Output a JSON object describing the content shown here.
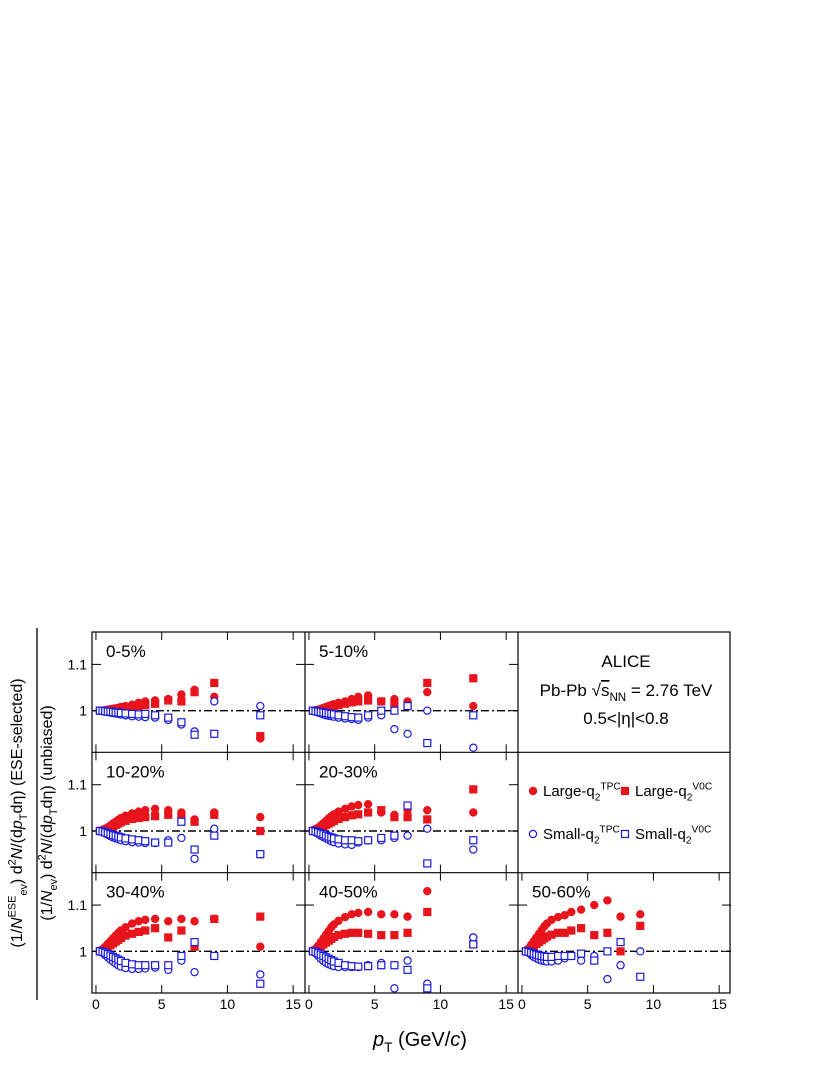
{
  "y_label": {
    "top": [
      {
        "t": "(1/"
      },
      {
        "t": "N",
        "s": "i"
      },
      {
        "t": "ESE",
        "s": "sup"
      },
      {
        "t": "ev",
        "s": "sub"
      },
      {
        "t": ") d"
      },
      {
        "t": "2",
        "s": "sup"
      },
      {
        "t": "N",
        "s": "i"
      },
      {
        "t": "/(d"
      },
      {
        "t": "p",
        "s": "i"
      },
      {
        "t": "T",
        "s": "sub"
      },
      {
        "t": "dη) (ESE-selected)"
      }
    ],
    "bottom": [
      {
        "t": "(1/"
      },
      {
        "t": "N",
        "s": "i"
      },
      {
        "t": "ev",
        "s": "sub"
      },
      {
        "t": ") d"
      },
      {
        "t": "2",
        "s": "sup"
      },
      {
        "t": "N",
        "s": "i"
      },
      {
        "t": "/(d"
      },
      {
        "t": "p",
        "s": "i"
      },
      {
        "t": "T",
        "s": "sub"
      },
      {
        "t": "dη)   (unbiased)"
      }
    ]
  },
  "x_label": [
    {
      "t": "p",
      "s": "i"
    },
    {
      "t": "T",
      "s": "sub"
    },
    {
      "t": " (GeV/"
    },
    {
      "t": "c",
      "s": "i"
    },
    {
      "t": ")"
    }
  ],
  "info": {
    "experiment": "ALICE",
    "system": [
      {
        "t": "Pb-Pb √"
      },
      {
        "t": "s",
        "s": "o"
      },
      {
        "t": "NN",
        "s": "sub"
      },
      {
        "t": " = 2.76 TeV"
      }
    ],
    "eta": "0.5<|η|<0.8"
  },
  "legend": [
    {
      "name": [
        {
          "t": "Large-q"
        },
        {
          "t": "2",
          "s": "sub"
        },
        {
          "t": "TPC",
          "s": "sup"
        }
      ],
      "color": "#e8141c",
      "marker": "circle",
      "filled": true
    },
    {
      "name": [
        {
          "t": "Large-q"
        },
        {
          "t": "2",
          "s": "sub"
        },
        {
          "t": "V0C",
          "s": "sup"
        }
      ],
      "color": "#e8141c",
      "marker": "square",
      "filled": true
    },
    {
      "name": [
        {
          "t": "Small-q"
        },
        {
          "t": "2",
          "s": "sub"
        },
        {
          "t": "TPC",
          "s": "sup"
        }
      ],
      "color": "#1a1adc",
      "marker": "circle",
      "filled": false
    },
    {
      "name": [
        {
          "t": "Small-q"
        },
        {
          "t": "2",
          "s": "sub"
        },
        {
          "t": "V0C",
          "s": "sup"
        }
      ],
      "color": "#1a1adc",
      "marker": "square",
      "filled": false
    }
  ],
  "axes": {
    "xlim": [
      -0.3,
      15.9
    ],
    "xticks": [
      0,
      5,
      10,
      15
    ],
    "ylim": [
      0.91,
      1.17
    ],
    "yticks": [
      1,
      1.1
    ],
    "reference_line": 1
  },
  "chart_data": [
    {
      "type": "scatter",
      "title": "0-5%",
      "x": [
        0.3,
        0.5,
        0.7,
        0.9,
        1.1,
        1.3,
        1.5,
        1.7,
        1.9,
        2.25,
        2.75,
        3.25,
        3.75,
        4.5,
        5.5,
        6.5,
        7.5,
        9,
        12.5
      ],
      "series": [
        {
          "values": [
            1.0,
            1.0,
            1.001,
            1.002,
            1.003,
            1.004,
            1.005,
            1.006,
            1.008,
            1.01,
            1.013,
            1.017,
            1.02,
            1.022,
            1.025,
            1.035,
            1.045,
            1.03,
            0.94
          ]
        },
        {
          "values": [
            1.0,
            1.0,
            1.0,
            1.001,
            1.002,
            1.003,
            1.003,
            1.004,
            1.005,
            1.006,
            1.008,
            1.01,
            1.012,
            1.015,
            1.022,
            1.02,
            1.04,
            1.06,
            0.945
          ]
        },
        {
          "values": [
            1.0,
            0.999,
            0.998,
            0.997,
            0.996,
            0.995,
            0.994,
            0.993,
            0.992,
            0.99,
            0.988,
            0.987,
            0.986,
            0.985,
            0.98,
            0.97,
            0.955,
            1.02,
            1.01
          ]
        },
        {
          "values": [
            1.0,
            1.0,
            0.999,
            0.998,
            0.998,
            0.997,
            0.996,
            0.996,
            0.995,
            0.994,
            0.993,
            0.992,
            0.993,
            0.99,
            0.985,
            0.975,
            0.948,
            0.95,
            0.99
          ]
        }
      ]
    },
    {
      "type": "scatter",
      "title": "5-10%",
      "x": [
        0.3,
        0.5,
        0.7,
        0.9,
        1.1,
        1.3,
        1.5,
        1.7,
        1.9,
        2.25,
        2.75,
        3.25,
        3.75,
        4.5,
        5.5,
        6.5,
        7.5,
        9,
        12.5
      ],
      "series": [
        {
          "values": [
            1.0,
            1.0,
            1.002,
            1.004,
            1.006,
            1.008,
            1.01,
            1.012,
            1.014,
            1.017,
            1.02,
            1.025,
            1.03,
            1.033,
            1.02,
            1.025,
            1.02,
            1.04,
            1.01
          ]
        },
        {
          "values": [
            1.0,
            1.0,
            1.001,
            1.002,
            1.003,
            1.005,
            1.006,
            1.008,
            1.01,
            1.012,
            1.015,
            1.018,
            1.02,
            1.022,
            1.02,
            1.015,
            1.01,
            1.06,
            1.07
          ]
        },
        {
          "values": [
            1.0,
            0.998,
            0.996,
            0.994,
            0.992,
            0.99,
            0.989,
            0.988,
            0.987,
            0.985,
            0.983,
            0.982,
            0.98,
            0.985,
            0.99,
            0.96,
            0.95,
            1.0,
            0.92
          ]
        },
        {
          "values": [
            1.0,
            0.999,
            0.998,
            0.997,
            0.996,
            0.995,
            0.994,
            0.993,
            0.992,
            0.99,
            0.988,
            0.986,
            0.985,
            0.99,
            1.0,
            1.0,
            1.01,
            0.93,
            0.99
          ]
        }
      ]
    },
    {
      "type": "scatter",
      "title": "10-20%",
      "x": [
        0.3,
        0.5,
        0.7,
        0.9,
        1.1,
        1.3,
        1.5,
        1.7,
        1.9,
        2.25,
        2.75,
        3.25,
        3.75,
        4.5,
        5.5,
        6.5,
        7.5,
        9,
        12.5
      ],
      "series": [
        {
          "values": [
            1.0,
            1.002,
            1.005,
            1.008,
            1.012,
            1.016,
            1.02,
            1.024,
            1.028,
            1.033,
            1.038,
            1.042,
            1.045,
            1.048,
            1.045,
            1.04,
            1.025,
            1.04,
            1.03
          ]
        },
        {
          "values": [
            1.0,
            1.001,
            1.003,
            1.005,
            1.007,
            1.01,
            1.013,
            1.016,
            1.019,
            1.022,
            1.026,
            1.028,
            1.03,
            1.032,
            1.035,
            1.03,
            1.02,
            1.035,
            1.0
          ]
        },
        {
          "values": [
            1.0,
            0.998,
            0.995,
            0.992,
            0.989,
            0.986,
            0.984,
            0.982,
            0.98,
            0.978,
            0.976,
            0.975,
            0.974,
            0.974,
            0.98,
            0.985,
            0.94,
            1.005,
            0.95
          ]
        },
        {
          "values": [
            1.0,
            0.999,
            0.997,
            0.995,
            0.993,
            0.991,
            0.99,
            0.988,
            0.986,
            0.984,
            0.982,
            0.98,
            0.978,
            0.975,
            0.975,
            1.02,
            0.96,
            0.99,
            0.95
          ]
        }
      ]
    },
    {
      "type": "scatter",
      "title": "20-30%",
      "x": [
        0.3,
        0.5,
        0.7,
        0.9,
        1.1,
        1.3,
        1.5,
        1.7,
        1.9,
        2.25,
        2.75,
        3.25,
        3.75,
        4.5,
        5.5,
        6.5,
        7.5,
        9,
        12.5
      ],
      "series": [
        {
          "values": [
            1.0,
            1.003,
            1.007,
            1.012,
            1.017,
            1.022,
            1.027,
            1.032,
            1.036,
            1.042,
            1.048,
            1.053,
            1.056,
            1.058,
            1.04,
            1.035,
            1.045,
            1.045,
            1.04
          ]
        },
        {
          "values": [
            1.0,
            1.002,
            1.004,
            1.007,
            1.01,
            1.013,
            1.016,
            1.019,
            1.022,
            1.026,
            1.03,
            1.034,
            1.036,
            1.04,
            1.045,
            1.03,
            1.03,
            1.025,
            1.09
          ]
        },
        {
          "values": [
            1.0,
            0.997,
            0.994,
            0.99,
            0.987,
            0.984,
            0.981,
            0.978,
            0.976,
            0.973,
            0.971,
            0.97,
            0.975,
            0.98,
            0.98,
            0.985,
            0.99,
            1.005,
            0.96
          ]
        },
        {
          "values": [
            1.0,
            0.999,
            0.997,
            0.995,
            0.993,
            0.99,
            0.988,
            0.986,
            0.984,
            0.982,
            0.98,
            0.98,
            0.978,
            0.98,
            0.985,
            0.99,
            1.055,
            0.93,
            0.98
          ]
        }
      ]
    },
    {
      "type": "scatter",
      "title": "30-40%",
      "x": [
        0.3,
        0.5,
        0.7,
        0.9,
        1.1,
        1.3,
        1.5,
        1.7,
        1.9,
        2.25,
        2.75,
        3.25,
        3.75,
        4.5,
        5.5,
        6.5,
        7.5,
        9,
        12.5
      ],
      "series": [
        {
          "values": [
            1.0,
            1.004,
            1.01,
            1.016,
            1.022,
            1.028,
            1.034,
            1.04,
            1.045,
            1.052,
            1.06,
            1.065,
            1.068,
            1.07,
            1.065,
            1.07,
            1.065,
            1.07,
            1.01
          ]
        },
        {
          "values": [
            1.0,
            1.002,
            1.005,
            1.009,
            1.013,
            1.017,
            1.021,
            1.025,
            1.029,
            1.034,
            1.038,
            1.042,
            1.045,
            1.05,
            1.03,
            1.045,
            1.01,
            1.07,
            1.075
          ]
        },
        {
          "values": [
            1.0,
            0.997,
            0.992,
            0.987,
            0.982,
            0.978,
            0.974,
            0.97,
            0.967,
            0.964,
            0.962,
            0.962,
            0.963,
            0.965,
            0.96,
            0.98,
            0.955,
            0.99,
            0.95
          ]
        },
        {
          "values": [
            1.0,
            0.999,
            0.997,
            0.994,
            0.991,
            0.988,
            0.985,
            0.982,
            0.979,
            0.975,
            0.972,
            0.97,
            0.97,
            0.97,
            0.97,
            0.99,
            1.02,
            0.99,
            0.93
          ]
        }
      ]
    },
    {
      "type": "scatter",
      "title": "40-50%",
      "x": [
        0.3,
        0.5,
        0.7,
        0.9,
        1.1,
        1.3,
        1.5,
        1.7,
        1.9,
        2.25,
        2.75,
        3.25,
        3.75,
        4.5,
        5.5,
        6.5,
        7.5,
        9,
        12.5
      ],
      "series": [
        {
          "values": [
            1.0,
            1.005,
            1.012,
            1.02,
            1.028,
            1.036,
            1.044,
            1.052,
            1.058,
            1.066,
            1.074,
            1.08,
            1.083,
            1.085,
            1.08,
            1.08,
            1.075,
            1.13,
            1.03
          ]
        },
        {
          "values": [
            1.0,
            1.003,
            1.007,
            1.011,
            1.015,
            1.019,
            1.023,
            1.027,
            1.031,
            1.035,
            1.038,
            1.04,
            1.04,
            1.038,
            1.035,
            1.035,
            1.04,
            1.085,
            1.015
          ]
        },
        {
          "values": [
            1.0,
            0.996,
            0.99,
            0.984,
            0.979,
            0.975,
            0.972,
            0.97,
            0.968,
            0.966,
            0.966,
            0.966,
            0.966,
            0.97,
            0.975,
            0.92,
            0.98,
            0.93,
            1.03
          ]
        },
        {
          "values": [
            1.0,
            0.999,
            0.996,
            0.993,
            0.99,
            0.987,
            0.984,
            0.981,
            0.978,
            0.975,
            0.97,
            0.968,
            0.967,
            0.968,
            0.97,
            0.97,
            0.96,
            0.92,
            1.015
          ]
        }
      ]
    },
    {
      "type": "scatter",
      "title": "50-60%",
      "x": [
        0.3,
        0.5,
        0.7,
        0.9,
        1.1,
        1.3,
        1.5,
        1.7,
        1.9,
        2.25,
        2.75,
        3.25,
        3.75,
        4.5,
        5.5,
        6.5,
        7.5,
        9,
        12.5
      ],
      "series": [
        {
          "values": [
            1.0,
            1.006,
            1.014,
            1.022,
            1.03,
            1.038,
            1.046,
            1.054,
            1.06,
            1.068,
            1.074,
            1.078,
            1.085,
            1.09,
            1.1,
            1.11,
            1.075,
            1.08,
            null
          ]
        },
        {
          "values": [
            1.0,
            1.003,
            1.007,
            1.012,
            1.016,
            1.02,
            1.024,
            1.028,
            1.032,
            1.036,
            1.04,
            1.04,
            1.045,
            1.05,
            1.035,
            1.04,
            1.0,
            1.055,
            null
          ]
        },
        {
          "values": [
            1.0,
            0.997,
            0.992,
            0.988,
            0.985,
            0.982,
            0.98,
            0.979,
            0.978,
            0.978,
            0.98,
            0.985,
            0.99,
            0.98,
            0.99,
            0.94,
            0.97,
            1.0,
            null
          ]
        },
        {
          "values": [
            1.0,
            0.999,
            0.997,
            0.995,
            0.993,
            0.991,
            0.99,
            0.989,
            0.988,
            0.988,
            0.99,
            0.99,
            0.99,
            0.995,
            0.98,
            1.0,
            1.02,
            0.945,
            null
          ]
        }
      ]
    }
  ]
}
